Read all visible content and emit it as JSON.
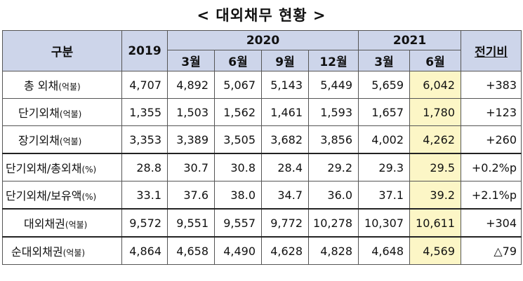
{
  "title": "< 대외채무 현황 >",
  "header": {
    "category": "구분",
    "year_2019": "2019",
    "year_2020": "2020",
    "year_2021": "2021",
    "change": "전기비",
    "months_2020": [
      "3월",
      "6월",
      "9월",
      "12월"
    ],
    "months_2021": [
      "3월",
      "6월"
    ]
  },
  "rows": [
    {
      "label": "총 외채",
      "unit": "(억불)",
      "values": [
        "4,707",
        "4,892",
        "5,067",
        "5,143",
        "5,449",
        "5,659",
        "6,042"
      ],
      "change": "+383"
    },
    {
      "label": "단기외채",
      "unit": "(억불)",
      "values": [
        "1,355",
        "1,503",
        "1,562",
        "1,461",
        "1,593",
        "1,657",
        "1,780"
      ],
      "change": "+123"
    },
    {
      "label": "장기외채",
      "unit": "(억불)",
      "values": [
        "3,353",
        "3,389",
        "3,505",
        "3,682",
        "3,856",
        "4,002",
        "4,262"
      ],
      "change": "+260"
    },
    {
      "label": "단기외채/총외채",
      "unit": "(%)",
      "values": [
        "28.8",
        "30.7",
        "30.8",
        "28.4",
        "29.2",
        "29.3",
        "29.5"
      ],
      "change": "+0.2%p"
    },
    {
      "label": "단기외채/보유액",
      "unit": "(%)",
      "values": [
        "33.1",
        "37.6",
        "38.0",
        "34.7",
        "36.0",
        "37.1",
        "39.2"
      ],
      "change": "+2.1%p"
    },
    {
      "label": "대외채권",
      "unit": "(억불)",
      "values": [
        "9,572",
        "9,551",
        "9,557",
        "9,772",
        "10,278",
        "10,307",
        "10,611"
      ],
      "change": "+304"
    },
    {
      "label": "순대외채권",
      "unit": "(억불)",
      "values": [
        "4,864",
        "4,658",
        "4,490",
        "4,628",
        "4,828",
        "4,648",
        "4,569"
      ],
      "change": "△79"
    }
  ]
}
